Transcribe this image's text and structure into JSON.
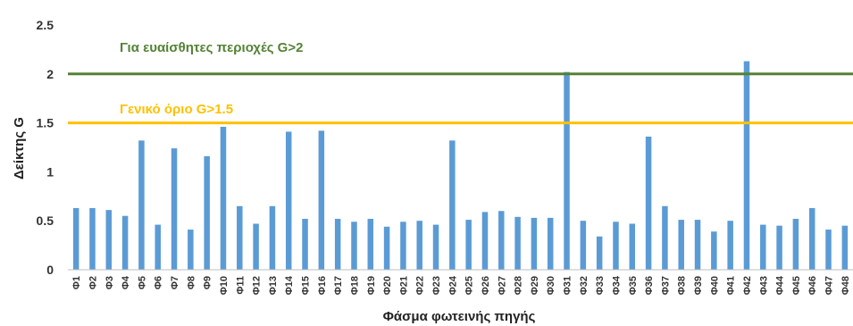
{
  "chart_data": {
    "type": "bar",
    "title": "",
    "xlabel": "Φάσμα φωτεινής πηγής",
    "ylabel": "Δείκτης G",
    "ylim": [
      0,
      2.5
    ],
    "yticks": [
      0,
      0.5,
      1,
      1.5,
      2,
      2.5
    ],
    "ytick_labels": [
      "0",
      "0.5",
      "1",
      "1.5",
      "2",
      "2.5"
    ],
    "grid": false,
    "bar_color": "#5B9BD5",
    "categories": [
      "Φ1",
      "Φ2",
      "Φ3",
      "Φ4",
      "Φ5",
      "Φ6",
      "Φ7",
      "Φ8",
      "Φ9",
      "Φ10",
      "Φ11",
      "Φ12",
      "Φ13",
      "Φ14",
      "Φ15",
      "Φ16",
      "Φ17",
      "Φ18",
      "Φ19",
      "Φ20",
      "Φ21",
      "Φ22",
      "Φ23",
      "Φ24",
      "Φ25",
      "Φ26",
      "Φ27",
      "Φ28",
      "Φ29",
      "Φ30",
      "Φ31",
      "Φ32",
      "Φ33",
      "Φ34",
      "Φ35",
      "Φ36",
      "Φ37",
      "Φ38",
      "Φ39",
      "Φ40",
      "Φ41",
      "Φ42",
      "Φ43",
      "Φ44",
      "Φ45",
      "Φ46",
      "Φ47",
      "Φ48"
    ],
    "values": [
      0.63,
      0.63,
      0.61,
      0.55,
      1.32,
      0.46,
      1.24,
      0.41,
      1.16,
      1.46,
      0.65,
      0.47,
      0.65,
      1.41,
      0.52,
      1.42,
      0.52,
      0.49,
      0.52,
      0.44,
      0.49,
      0.5,
      0.46,
      1.32,
      0.51,
      0.59,
      0.6,
      0.54,
      0.53,
      0.53,
      2.02,
      0.5,
      0.34,
      0.49,
      0.47,
      1.36,
      0.65,
      0.51,
      0.51,
      0.39,
      0.5,
      2.13,
      0.46,
      0.45,
      0.52,
      0.63,
      0.41,
      0.45
    ],
    "reference_lines": [
      {
        "value": 2,
        "label": "Για ευαίσθητες περιοχές G>2",
        "color": "#548235"
      },
      {
        "value": 1.5,
        "label": "Γενικό όριο G>1.5",
        "color": "#FFC000"
      }
    ]
  }
}
